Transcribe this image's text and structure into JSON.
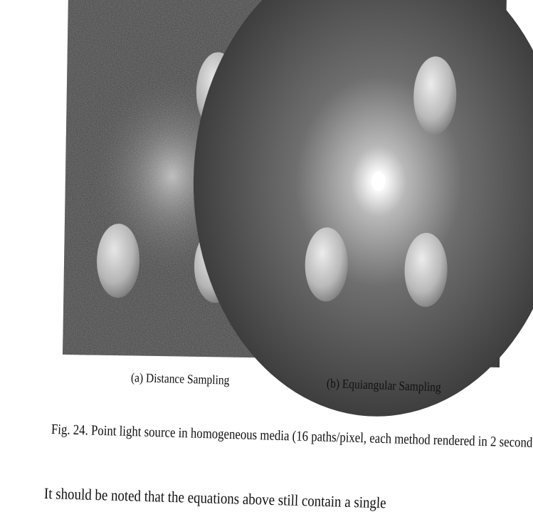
{
  "figure": {
    "subfigures": [
      {
        "label": "(a)",
        "title": "Distance Sampling"
      },
      {
        "label": "(b)",
        "title": "Equiangular Sampling"
      }
    ],
    "caption_label": "Fig. 24.",
    "caption_text": "Point light source in homogeneous media (16 paths/pixel, each method rendered in 2 second"
  },
  "body": {
    "paragraph_start": "It should be noted that the equations above still contain a single"
  }
}
